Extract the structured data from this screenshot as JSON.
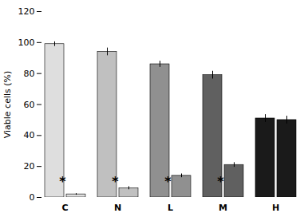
{
  "chart_data": {
    "type": "bar",
    "categories": [
      "C",
      "N",
      "L",
      "M",
      "H"
    ],
    "series": [
      {
        "values": [
          99,
          94,
          86,
          79,
          51
        ],
        "errors": [
          1.5,
          2.5,
          2.0,
          2.5,
          2.5
        ]
      },
      {
        "values": [
          2,
          6,
          14,
          21,
          50
        ],
        "errors": [
          0.5,
          1.0,
          1.2,
          1.5,
          2.5
        ]
      }
    ],
    "colors": [
      "#dedede",
      "#c0c0c0",
      "#909090",
      "#606060",
      "#1a1a1a"
    ],
    "annotations": [
      {
        "text": "*",
        "category": "C",
        "y": 10
      },
      {
        "text": "*",
        "category": "N",
        "y": 10
      },
      {
        "text": "*",
        "category": "L",
        "y": 10
      },
      {
        "text": "*",
        "category": "M",
        "y": 10
      }
    ],
    "ylabel": "Viable cells (%)",
    "ylim": [
      0,
      120
    ],
    "yticks": [
      0,
      20,
      40,
      60,
      80,
      100,
      120
    ],
    "grid": false
  }
}
